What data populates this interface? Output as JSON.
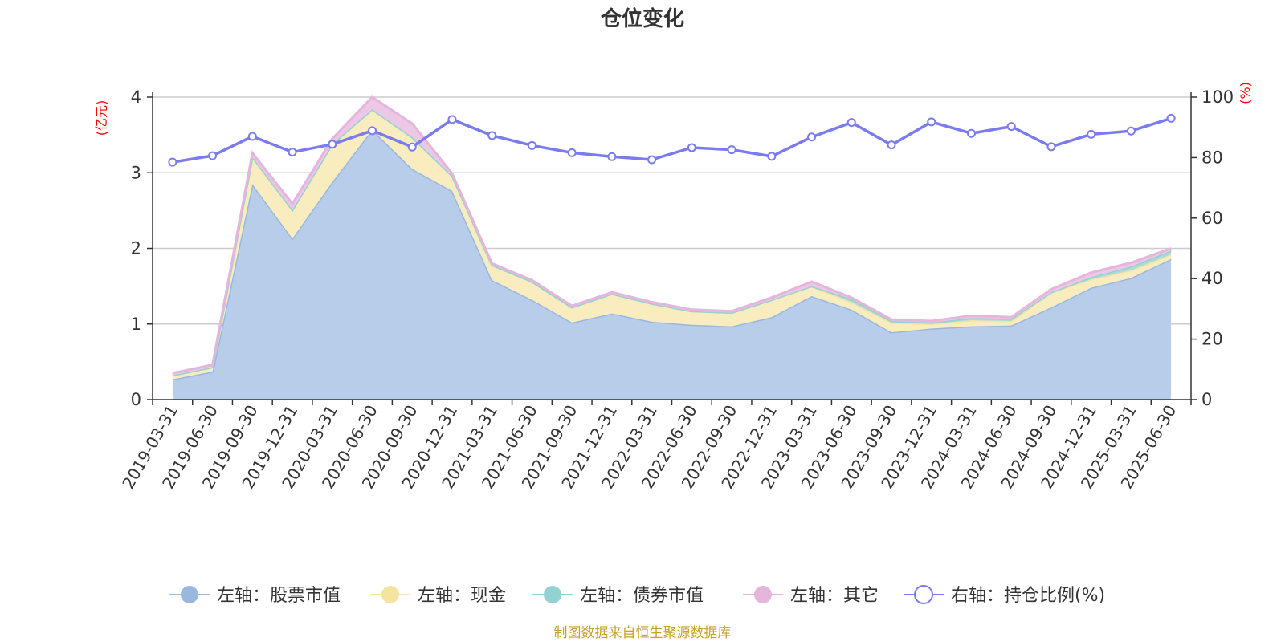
{
  "chart_data": {
    "type": "area",
    "title": "仓位变化",
    "left_axis": {
      "unit_label": "(亿元)",
      "ylim": [
        0,
        4
      ],
      "ticks": [
        "0",
        "1",
        "2",
        "3",
        "4"
      ]
    },
    "right_axis": {
      "unit_label": "(%)",
      "ylim": [
        0,
        100
      ],
      "ticks": [
        "0",
        "20",
        "40",
        "60",
        "80",
        "100"
      ]
    },
    "x": [
      "2019-03-31",
      "2019-06-30",
      "2019-09-30",
      "2019-12-31",
      "2020-03-31",
      "2020-06-30",
      "2020-09-30",
      "2020-12-31",
      "2021-03-31",
      "2021-06-30",
      "2021-09-30",
      "2021-12-31",
      "2022-03-31",
      "2022-06-30",
      "2022-09-30",
      "2022-12-31",
      "2023-03-31",
      "2023-06-30",
      "2023-09-30",
      "2023-12-31",
      "2024-03-31",
      "2024-06-30",
      "2024-09-30",
      "2024-12-31",
      "2025-03-31",
      "2025-06-30"
    ],
    "grid": true,
    "legend_position": "bottom",
    "series": [
      {
        "name": "左轴：股票市值",
        "axis": "left",
        "color": "#9ab7e0",
        "fill": "#b7cdea",
        "values": [
          0.27,
          0.37,
          2.85,
          2.13,
          2.88,
          3.57,
          3.05,
          2.76,
          1.58,
          1.32,
          1.02,
          1.14,
          1.03,
          0.99,
          0.97,
          1.09,
          1.37,
          1.19,
          0.89,
          0.94,
          0.97,
          0.98,
          1.22,
          1.48,
          1.61,
          1.86
        ]
      },
      {
        "name": "左轴：现金",
        "axis": "left",
        "color": "#f5e3a0",
        "fill": "#f9ecbf",
        "values": [
          0.05,
          0.06,
          0.36,
          0.38,
          0.5,
          0.27,
          0.42,
          0.2,
          0.2,
          0.24,
          0.2,
          0.26,
          0.24,
          0.18,
          0.18,
          0.23,
          0.13,
          0.1,
          0.13,
          0.06,
          0.08,
          0.06,
          0.2,
          0.11,
          0.1,
          0.06
        ]
      },
      {
        "name": "左轴：债券市值",
        "axis": "left",
        "color": "#94d2d2",
        "fill": "#a9dbdb",
        "values": [
          0,
          0,
          0,
          0,
          0,
          0,
          0,
          0,
          0,
          0,
          0,
          0,
          0,
          0,
          0,
          0,
          0,
          0.04,
          0.02,
          0.02,
          0.03,
          0.03,
          0,
          0.03,
          0.05,
          0.05
        ]
      },
      {
        "name": "左轴：其它",
        "axis": "left",
        "color": "#e6b5dc",
        "fill": "#ecc8e6",
        "values": [
          0.03,
          0.03,
          0.05,
          0.08,
          0.07,
          0.16,
          0.18,
          0.03,
          0.02,
          0.02,
          0.02,
          0.02,
          0.02,
          0.02,
          0.02,
          0.03,
          0.06,
          0.02,
          0.02,
          0.02,
          0.03,
          0.02,
          0.04,
          0.06,
          0.05,
          0.03
        ]
      },
      {
        "name": "右轴：持仓比例(%)",
        "axis": "right",
        "type": "line",
        "color": "#7b7bf0",
        "values": [
          78.5,
          80.6,
          87.0,
          81.8,
          84.4,
          88.9,
          83.5,
          92.6,
          87.3,
          84.0,
          81.6,
          80.3,
          79.3,
          83.3,
          82.6,
          80.4,
          86.8,
          91.6,
          84.2,
          91.8,
          88.0,
          90.3,
          83.6,
          87.7,
          88.8,
          93.0
        ]
      }
    ],
    "source_note": "制图数据来自恒生聚源数据库"
  }
}
